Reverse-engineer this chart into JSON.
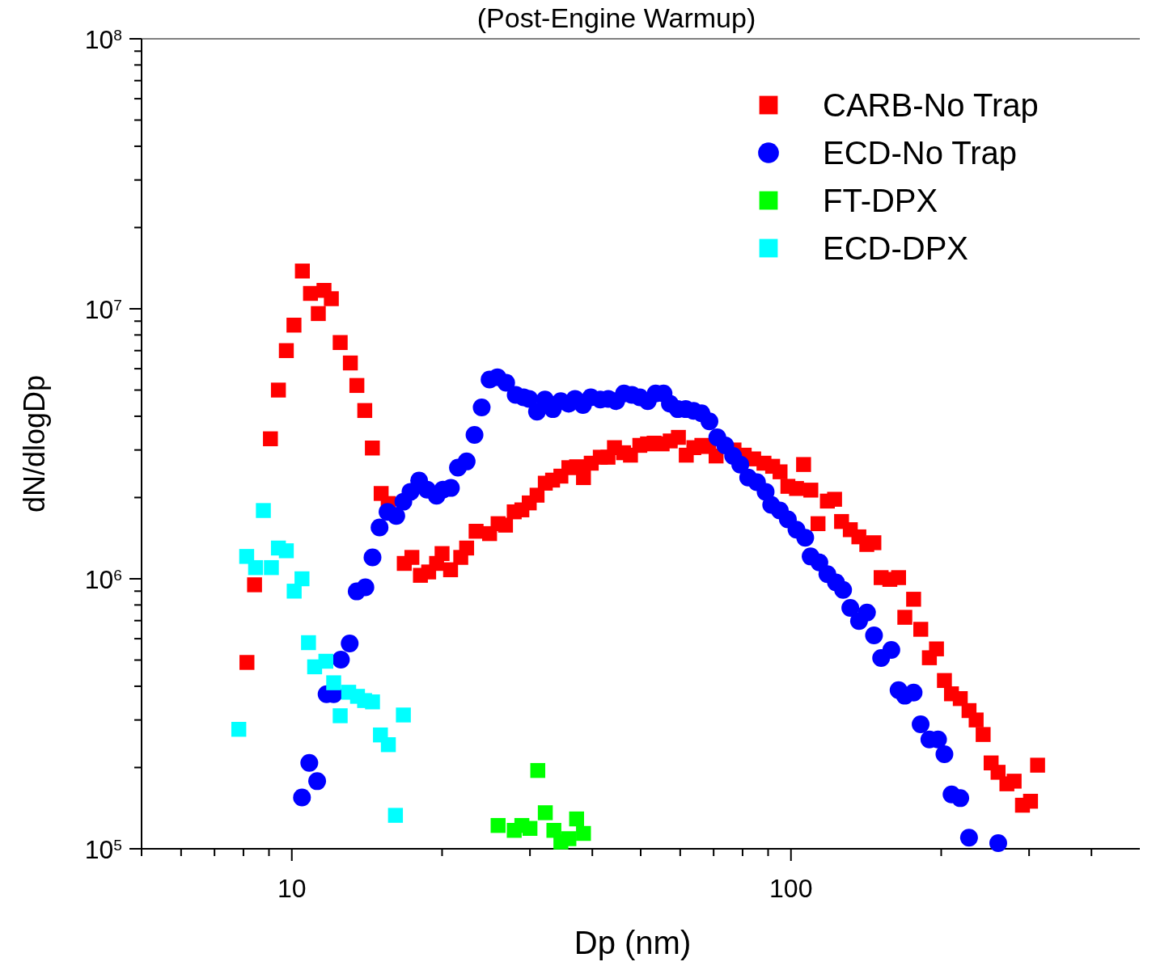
{
  "chart_data": {
    "type": "scatter",
    "title": "(Post-Engine Warmup)",
    "xlabel": "Dp (nm)",
    "ylabel": "dN/dlogDp",
    "log": "xy",
    "legend": "top right",
    "xlim": [
      5,
      500
    ],
    "ylim": [
      100000,
      100000000
    ],
    "xticks": [
      {
        "value": 5,
        "label": null
      },
      {
        "value": 6,
        "label": null
      },
      {
        "value": 7,
        "label": null
      },
      {
        "value": 8,
        "label": null
      },
      {
        "value": 9,
        "label": null
      },
      10,
      {
        "value": 20,
        "label": null
      },
      {
        "value": 30,
        "label": null
      },
      {
        "value": 40,
        "label": null
      },
      {
        "value": 50,
        "label": null
      },
      {
        "value": 60,
        "label": null
      },
      {
        "value": 70,
        "label": null
      },
      {
        "value": 80,
        "label": null
      },
      {
        "value": 90,
        "label": null
      },
      100,
      {
        "value": 200,
        "label": null
      },
      {
        "value": 300,
        "label": null
      },
      {
        "value": 400,
        "label": null
      }
    ],
    "yticks": [
      {
        "value": 100000,
        "label": "10$^{5}$"
      },
      {
        "value": 200000,
        "label": null
      },
      {
        "value": 300000,
        "label": null
      },
      {
        "value": 400000,
        "label": null
      },
      {
        "value": 500000,
        "label": null
      },
      {
        "value": 600000,
        "label": null
      },
      {
        "value": 700000,
        "label": null
      },
      {
        "value": 800000,
        "label": null
      },
      {
        "value": 900000,
        "label": null
      },
      {
        "value": 1000000,
        "label": "10$^{6}$"
      },
      {
        "value": 2000000,
        "label": null
      },
      {
        "value": 3000000,
        "label": null
      },
      {
        "value": 4000000,
        "label": null
      },
      {
        "value": 5000000,
        "label": null
      },
      {
        "value": 6000000,
        "label": null
      },
      {
        "value": 7000000,
        "label": null
      },
      {
        "value": 8000000,
        "label": null
      },
      {
        "value": 9000000,
        "label": null
      },
      {
        "value": 10000000,
        "label": "10$^{7}$"
      },
      {
        "value": 20000000,
        "label": null
      },
      {
        "value": 30000000,
        "label": null
      },
      {
        "value": 40000000,
        "label": null
      },
      {
        "value": 50000000,
        "label": null
      },
      {
        "value": 60000000,
        "label": null
      },
      {
        "value": 70000000,
        "label": null
      },
      {
        "value": 80000000,
        "label": null
      },
      {
        "value": 90000000,
        "label": null
      },
      {
        "value": 100000000,
        "label": "10$^{8}$"
      }
    ],
    "series": [
      {
        "name": "CARB-No Trap",
        "color": "#ff0000",
        "marker": "square",
        "x": [
          8.13,
          8.42,
          9.06,
          9.4,
          9.75,
          10.1,
          10.5,
          10.9,
          11.3,
          11.6,
          12.0,
          12.5,
          13.1,
          13.5,
          14.0,
          14.5,
          15.1,
          15.6,
          16.8,
          17.4,
          18.1,
          18.8,
          19.5,
          20.0,
          20.8,
          21.8,
          22.4,
          23.4,
          24.9,
          25.9,
          26.8,
          27.9,
          28.9,
          29.9,
          31.0,
          32.2,
          33.3,
          34.6,
          35.9,
          37.2,
          38.4,
          39.8,
          41.5,
          43.0,
          44.3,
          46.2,
          47.7,
          49.8,
          51.6,
          53.2,
          55.2,
          57.3,
          59.5,
          61.7,
          63.9,
          66.3,
          68.4,
          70.8,
          76.9,
          80.6,
          84.2,
          88.3,
          91.9,
          95.1,
          98.6,
          102.6,
          106,
          109.6,
          113.3,
          118.3,
          122.3,
          126.3,
          131.5,
          136.8,
          141.9,
          146.6,
          151.6,
          157.8,
          164.3,
          169.1,
          176.1,
          182,
          189.4,
          195.7,
          203,
          209.7,
          218.4,
          227.4,
          235,
          242.7,
          251.8,
          260,
          270.8,
          280,
          291,
          302,
          312
        ],
        "values": [
          490000,
          950000,
          3300000,
          5000000,
          7000000,
          8700000,
          13800000,
          11400000,
          9600000,
          11700000,
          10900000,
          7500000,
          6300000,
          5200000,
          4200000,
          3050000,
          2070000,
          1900000,
          1140000,
          1200000,
          1030000,
          1060000,
          1140000,
          1240000,
          1080000,
          1200000,
          1300000,
          1500000,
          1470000,
          1600000,
          1580000,
          1770000,
          1800000,
          1910000,
          2040000,
          2260000,
          2320000,
          2400000,
          2580000,
          2600000,
          2370000,
          2680000,
          2820000,
          2820000,
          3060000,
          2930000,
          2870000,
          3120000,
          3160000,
          3180000,
          3160000,
          3240000,
          3340000,
          2870000,
          3060000,
          3120000,
          3090000,
          2850000,
          3000000,
          2870000,
          2780000,
          2680000,
          2610000,
          2490000,
          2200000,
          2160000,
          2650000,
          2130000,
          1600000,
          1940000,
          1970000,
          1630000,
          1520000,
          1430000,
          1340000,
          1360000,
          1010000,
          995000,
          1010000,
          720000,
          840000,
          650000,
          510000,
          550000,
          420000,
          375000,
          360000,
          325000,
          300000,
          265000,
          208000,
          192000,
          174000,
          178000,
          145000,
          150000,
          204000
        ]
      },
      {
        "name": "ECD-No Trap",
        "color": "#0000ff",
        "marker": "circle",
        "x": [
          10.48,
          10.84,
          11.24,
          11.74,
          12.13,
          12.54,
          13.06,
          13.49,
          14.04,
          14.51,
          14.99,
          15.55,
          16.19,
          16.73,
          17.29,
          17.99,
          18.66,
          19.5,
          20.08,
          20.83,
          21.52,
          22.4,
          23.23,
          24.01,
          24.9,
          25.82,
          26.88,
          28.09,
          29.13,
          29.88,
          30.99,
          32.15,
          33.34,
          34.58,
          35.86,
          36.93,
          38.31,
          39.72,
          41.5,
          43.05,
          44.65,
          46.3,
          48.02,
          49.8,
          51.66,
          53.58,
          55.56,
          57.22,
          59.34,
          61.54,
          63.83,
          66.2,
          68.66,
          71.2,
          73.85,
          76.59,
          79.15,
          82.1,
          85.49,
          88.98,
          91.3,
          95.0,
          98.6,
          102.6,
          106.8,
          109.5,
          114.0,
          118.3,
          123.1,
          127.2,
          131.5,
          136.9,
          142.0,
          146.7,
          151.6,
          158.9,
          164.3,
          169.1,
          176.1,
          181.9,
          189.4,
          197.1,
          203.0,
          209.8,
          218.4,
          227.4,
          260.2
        ],
        "values": [
          155000,
          208000,
          178000,
          374000,
          374000,
          502000,
          576000,
          898000,
          930000,
          1200000,
          1550000,
          1770000,
          1710000,
          1930000,
          2100000,
          2310000,
          2140000,
          2030000,
          2140000,
          2170000,
          2580000,
          2720000,
          3410000,
          4310000,
          5470000,
          5580000,
          5320000,
          4800000,
          4700000,
          4640000,
          4160000,
          4610000,
          4250000,
          4550000,
          4450000,
          4640000,
          4400000,
          4700000,
          4610000,
          4640000,
          4550000,
          4860000,
          4800000,
          4700000,
          4550000,
          4860000,
          4860000,
          4450000,
          4250000,
          4250000,
          4190000,
          4100000,
          3830000,
          3340000,
          3120000,
          2850000,
          2650000,
          2370000,
          2280000,
          2100000,
          1880000,
          1790000,
          1660000,
          1520000,
          1420000,
          1210000,
          1150000,
          1040000,
          970000,
          910000,
          780000,
          698000,
          750000,
          617000,
          509000,
          545000,
          387000,
          369000,
          379000,
          289000,
          254000,
          254000,
          224000,
          159000,
          154000,
          110000,
          105000
        ]
      },
      {
        "name": "FT-DPX",
        "color": "#00ff00",
        "marker": "square",
        "x": [
          25.9,
          27.9,
          28.9,
          30.0,
          31.1,
          32.2,
          33.5,
          34.6,
          35.9,
          37.2,
          38.4
        ],
        "values": [
          122000,
          117000,
          122000,
          119000,
          195000,
          136000,
          117000,
          106000,
          109000,
          129000,
          114000
        ]
      },
      {
        "name": "ECD-DPX",
        "color": "#00ffff",
        "marker": "square",
        "x": [
          7.83,
          8.12,
          8.46,
          8.77,
          9.1,
          9.4,
          9.75,
          10.11,
          10.48,
          10.8,
          11.11,
          11.7,
          12.13,
          12.5,
          13.0,
          13.54,
          13.99,
          14.51,
          15.05,
          15.61,
          16.13,
          16.73
        ],
        "values": [
          277000,
          1210000,
          1100000,
          1790000,
          1100000,
          1300000,
          1270000,
          900000,
          1000000,
          580000,
          472000,
          495000,
          412000,
          311000,
          380000,
          367000,
          354000,
          350000,
          264000,
          243000,
          133000,
          313000
        ]
      }
    ]
  }
}
